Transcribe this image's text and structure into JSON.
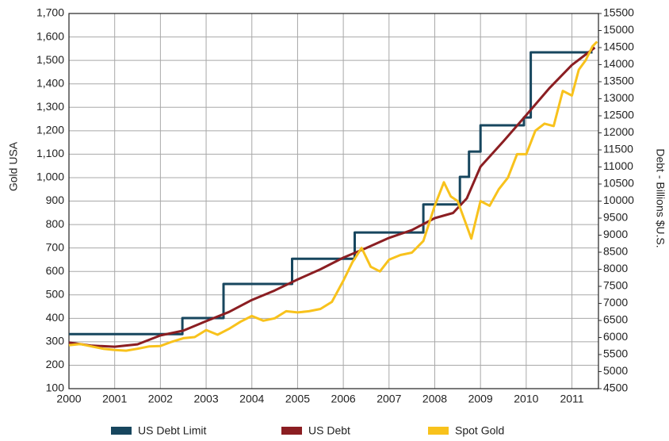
{
  "chart_data": {
    "type": "line",
    "y_label": "Gold USA",
    "y2_label": "Debt - Billions $U.S.",
    "xlim": [
      2000,
      2011.58
    ],
    "xticks": [
      2000,
      2001,
      2002,
      2003,
      2004,
      2005,
      2006,
      2007,
      2008,
      2009,
      2010,
      2011
    ],
    "ylim": [
      100,
      1700
    ],
    "yticks": [
      100,
      200,
      300,
      400,
      500,
      600,
      700,
      800,
      900,
      {
        "value": 1000,
        "label": "1,000"
      },
      {
        "value": 1100,
        "label": "1,100"
      },
      {
        "value": 1200,
        "label": "1,200"
      },
      {
        "value": 1300,
        "label": "1,300"
      },
      {
        "value": 1400,
        "label": "1,400"
      },
      {
        "value": 1500,
        "label": "1,500"
      },
      {
        "value": 1600,
        "label": "1,600"
      },
      {
        "value": 1700,
        "label": "1,700"
      }
    ],
    "y2lim": [
      4500,
      15500
    ],
    "y2ticks": [
      4500,
      5000,
      5500,
      6000,
      6500,
      7000,
      7500,
      8000,
      8500,
      9000,
      9500,
      10000,
      10500,
      11000,
      11500,
      12000,
      12500,
      13000,
      13500,
      14000,
      14500,
      15000,
      15500
    ],
    "grid": true,
    "legend": "bottom",
    "series": [
      {
        "name": "US Debt Limit",
        "color": "#17465e",
        "axis": "y2",
        "x": [
          2000,
          2002.48,
          2002.48,
          2003.38,
          2003.38,
          2004.88,
          2004.88,
          2006.25,
          2006.25,
          2007.75,
          2007.75,
          2008.55,
          2008.55,
          2008.75,
          2008.75,
          2009.0,
          2009.0,
          2009.95,
          2009.95,
          2010.1,
          2010.1,
          2011.45
        ],
        "values": [
          6100,
          6100,
          6570,
          6570,
          7570,
          7570,
          8310,
          8310,
          9080,
          9080,
          9900,
          9900,
          10710,
          10710,
          11450,
          11450,
          12220,
          12220,
          12450,
          12450,
          14360,
          14360
        ]
      },
      {
        "name": "US Debt",
        "color": "#8b1e22",
        "axis": "y2",
        "x": [
          2000,
          2000.5,
          2001,
          2001.5,
          2002,
          2002.5,
          2003,
          2003.5,
          2004,
          2004.5,
          2005,
          2005.5,
          2006,
          2006.5,
          2007,
          2007.5,
          2008,
          2008.4,
          2008.7,
          2009,
          2009.5,
          2010,
          2010.5,
          2011,
          2011.5
        ],
        "values": [
          5850,
          5760,
          5730,
          5800,
          6060,
          6200,
          6480,
          6750,
          7100,
          7380,
          7700,
          8000,
          8340,
          8620,
          8920,
          9150,
          9500,
          9650,
          10080,
          11010,
          11750,
          12520,
          13300,
          13990,
          14500
        ]
      },
      {
        "name": "Spot Gold",
        "color": "#f8c21c",
        "axis": "y",
        "x": [
          2000,
          2000.25,
          2000.5,
          2000.75,
          2001,
          2001.25,
          2001.5,
          2001.75,
          2002,
          2002.25,
          2002.5,
          2002.75,
          2003,
          2003.25,
          2003.5,
          2003.75,
          2004,
          2004.25,
          2004.5,
          2004.75,
          2005,
          2005.25,
          2005.5,
          2005.75,
          2006,
          2006.2,
          2006.4,
          2006.6,
          2006.8,
          2007,
          2007.25,
          2007.5,
          2007.75,
          2008,
          2008.2,
          2008.35,
          2008.5,
          2008.65,
          2008.8,
          2009,
          2009.2,
          2009.4,
          2009.6,
          2009.8,
          2010,
          2010.2,
          2010.4,
          2010.6,
          2010.8,
          2011,
          2011.15,
          2011.3,
          2011.45,
          2011.55
        ],
        "values": [
          285,
          290,
          280,
          270,
          265,
          262,
          270,
          280,
          282,
          300,
          315,
          320,
          350,
          330,
          355,
          385,
          410,
          390,
          400,
          430,
          425,
          430,
          440,
          470,
          560,
          640,
          700,
          620,
          600,
          650,
          670,
          680,
          730,
          880,
          980,
          920,
          900,
          820,
          740,
          900,
          880,
          950,
          1000,
          1100,
          1100,
          1200,
          1230,
          1220,
          1370,
          1350,
          1460,
          1500,
          1560,
          1580
        ]
      }
    ]
  }
}
